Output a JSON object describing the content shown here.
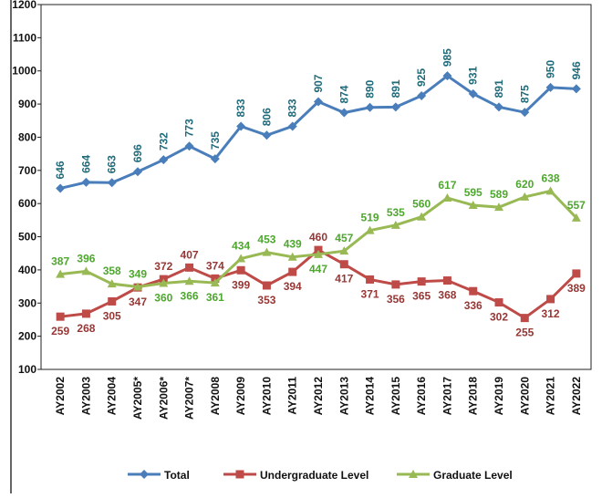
{
  "chart_data": {
    "type": "line",
    "categories": [
      "AY2002",
      "AY2003",
      "AY2004",
      "AY2005*",
      "AY2006*",
      "AY2007*",
      "AY2008",
      "AY2009",
      "AY2010",
      "AY2011",
      "AY2012",
      "AY2013",
      "AY2014",
      "AY2015",
      "AY2016",
      "AY2017",
      "AY2018",
      "AY2019",
      "AY2020",
      "AY2021",
      "AY2022"
    ],
    "series": [
      {
        "name": "Total",
        "color": "#4a7ebb",
        "values": [
          646,
          664,
          663,
          696,
          732,
          773,
          735,
          833,
          806,
          833,
          907,
          874,
          890,
          891,
          925,
          985,
          931,
          891,
          875,
          950,
          946
        ]
      },
      {
        "name": "Undergraduate Level",
        "color": "#be4b48",
        "values": [
          259,
          268,
          305,
          347,
          372,
          407,
          374,
          399,
          353,
          394,
          460,
          417,
          371,
          356,
          365,
          368,
          336,
          302,
          255,
          312,
          389
        ]
      },
      {
        "name": "Graduate Level",
        "color": "#98b954",
        "values": [
          387,
          396,
          358,
          349,
          360,
          366,
          361,
          434,
          453,
          439,
          447,
          457,
          519,
          535,
          560,
          617,
          595,
          589,
          620,
          638,
          557
        ]
      }
    ],
    "ylim": [
      100,
      1200
    ],
    "yticks": [
      100,
      200,
      300,
      400,
      500,
      600,
      700,
      800,
      900,
      1000,
      1100,
      1200
    ],
    "grid": false,
    "legend": "bottom"
  }
}
